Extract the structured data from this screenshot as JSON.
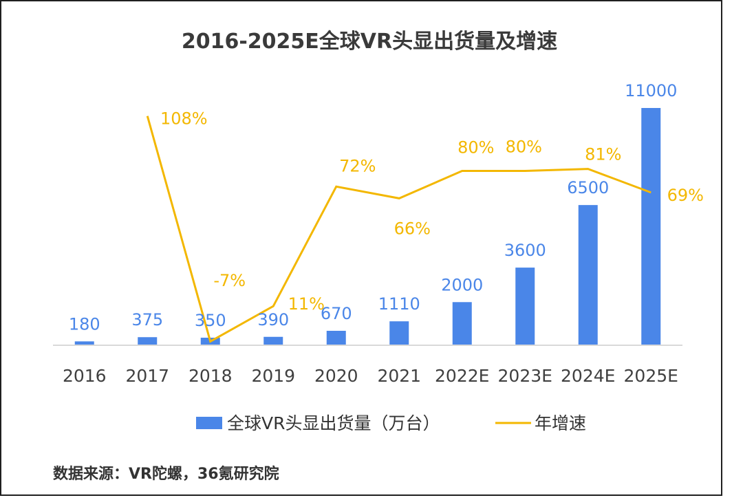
{
  "chart_data": {
    "type": "bar",
    "title": "2016-2025E全球VR头显出货量及增速",
    "categories": [
      "2016",
      "2017",
      "2018",
      "2019",
      "2020",
      "2021",
      "2022E",
      "2023E",
      "2024E",
      "2025E"
    ],
    "series": [
      {
        "name": "全球VR头显出货量（万台）",
        "type": "bar",
        "color": "#4a86e8",
        "values": [
          180,
          375,
          350,
          390,
          670,
          1110,
          2000,
          3600,
          6500,
          11000
        ],
        "labels": [
          "180",
          "375",
          "350",
          "390",
          "670",
          "1110",
          "2000",
          "3600",
          "6500",
          "11000"
        ]
      },
      {
        "name": "年增速",
        "type": "line",
        "color": "#f3b700",
        "values": [
          null,
          108,
          -7,
          11,
          72,
          66,
          80,
          80,
          81,
          69
        ],
        "labels": [
          "",
          "108%",
          "-7%",
          "11%",
          "72%",
          "66%",
          "80%",
          "80%",
          "81%",
          "69%"
        ]
      }
    ],
    "ylim": [
      0,
      11000
    ],
    "y2lim": [
      -10,
      110
    ],
    "grid": false,
    "legend": "bottom"
  },
  "source": "数据来源：VR陀螺，36氪研究院"
}
